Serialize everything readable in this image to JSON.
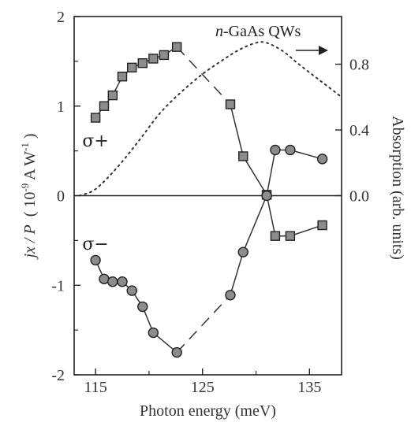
{
  "chart_data": {
    "type": "scatter",
    "xlabel": "Photon energy (meV)",
    "ylabel": "jx / P  ( 10-9 A W-1 )",
    "ylabel_parts": {
      "lhs": "jx / P",
      "unit_open": "( 10",
      "exp": "-9",
      "unit_mid": " A W",
      "exp2": "-1",
      "unit_close": " )"
    },
    "y2label": "Absorption (arb. units)",
    "xlim": [
      113,
      138
    ],
    "ylim": [
      -2,
      2
    ],
    "y2lim": [
      -1.09,
      1.09
    ],
    "x_ticks": [
      115,
      125,
      135
    ],
    "y_ticks": [
      -2,
      -1,
      0,
      1,
      2
    ],
    "y2_ticks": [
      0.0,
      0.4,
      0.8
    ],
    "y2_tick_labels": [
      "0.0",
      "0.4",
      "0.8"
    ],
    "annotation": {
      "prefix": "n",
      "text": "-GaAs QWs"
    },
    "series": [
      {
        "name": "σ+",
        "marker": "square",
        "label_pos": [
          114.5,
          0.62
        ],
        "points": [
          [
            115,
            0.87
          ],
          [
            115.8,
            1.0
          ],
          [
            116.6,
            1.12
          ],
          [
            117.5,
            1.33
          ],
          [
            118.4,
            1.43
          ],
          [
            119.4,
            1.48
          ],
          [
            120.4,
            1.53
          ],
          [
            121.4,
            1.57
          ],
          [
            122.6,
            1.66
          ],
          [
            127.6,
            1.02
          ],
          [
            128.8,
            0.44
          ],
          [
            131,
            0.01
          ],
          [
            131.8,
            -0.45
          ],
          [
            133.2,
            -0.45
          ],
          [
            136.2,
            -0.33
          ]
        ],
        "dashed_gap": [
          [
            122.6,
            1.66
          ],
          [
            127.6,
            1.02
          ]
        ]
      },
      {
        "name": "σ−",
        "marker": "circle",
        "label_pos": [
          114.5,
          -0.53
        ],
        "points": [
          [
            115,
            -0.72
          ],
          [
            115.8,
            -0.93
          ],
          [
            116.6,
            -0.96
          ],
          [
            117.5,
            -0.96
          ],
          [
            118.4,
            -1.06
          ],
          [
            119.4,
            -1.24
          ],
          [
            120.4,
            -1.53
          ],
          [
            122.6,
            -1.75
          ],
          [
            127.6,
            -1.11
          ],
          [
            128.8,
            -0.63
          ],
          [
            131,
            0.0
          ],
          [
            131.8,
            0.51
          ],
          [
            133.2,
            0.51
          ],
          [
            136.2,
            0.41
          ]
        ],
        "dashed_gap": [
          [
            122.6,
            -1.75
          ],
          [
            127.6,
            -1.11
          ]
        ]
      },
      {
        "name": "Absorption",
        "marker": "none",
        "axis": "right",
        "style": "dotted",
        "points": [
          [
            113.5,
            0.0
          ],
          [
            115,
            0.04
          ],
          [
            117,
            0.17
          ],
          [
            119,
            0.33
          ],
          [
            121,
            0.5
          ],
          [
            123,
            0.63
          ],
          [
            125,
            0.74
          ],
          [
            127,
            0.83
          ],
          [
            128.5,
            0.89
          ],
          [
            130,
            0.93
          ],
          [
            131,
            0.93
          ],
          [
            132.5,
            0.88
          ],
          [
            134,
            0.8
          ],
          [
            136,
            0.7
          ],
          [
            138,
            0.6
          ]
        ]
      }
    ]
  }
}
